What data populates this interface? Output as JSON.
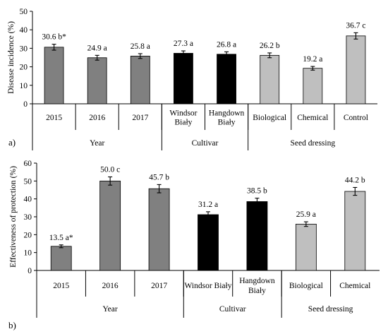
{
  "chart_data": [
    {
      "type": "bar",
      "panel_label": "a)",
      "ylabel": "Disease incidence (%)",
      "ylim": [
        0,
        50
      ],
      "yticks": [
        0,
        10,
        20,
        30,
        40,
        50
      ],
      "grid": false,
      "categories": [
        {
          "lines": [
            "2015"
          ],
          "value": 30.6,
          "error": 1.6,
          "label": "30.6 b*",
          "color": "#808080"
        },
        {
          "lines": [
            "2016"
          ],
          "value": 24.9,
          "error": 1.3,
          "label": "24.9 a",
          "color": "#808080"
        },
        {
          "lines": [
            "2017"
          ],
          "value": 25.8,
          "error": 1.3,
          "label": "25.8 a",
          "color": "#808080"
        },
        {
          "lines": [
            "Windsor",
            "Biały"
          ],
          "value": 27.3,
          "error": 1.3,
          "label": "27.3 a",
          "color": "#000000"
        },
        {
          "lines": [
            "Hangdown",
            "Biały"
          ],
          "value": 26.8,
          "error": 1.3,
          "label": "26.8 a",
          "color": "#000000"
        },
        {
          "lines": [
            "Biological"
          ],
          "value": 26.2,
          "error": 1.3,
          "label": "26.2 b",
          "color": "#bfbfbf"
        },
        {
          "lines": [
            "Chemical"
          ],
          "value": 19.2,
          "error": 1.0,
          "label": "19.2 a",
          "color": "#bfbfbf"
        },
        {
          "lines": [
            "Control"
          ],
          "value": 36.7,
          "error": 1.7,
          "label": "36.7 c",
          "color": "#bfbfbf"
        }
      ],
      "groups": [
        {
          "name": "Year",
          "count": 3
        },
        {
          "name": "Cultivar",
          "count": 2
        },
        {
          "name": "Seed dressing",
          "count": 3
        }
      ]
    },
    {
      "type": "bar",
      "panel_label": "b)",
      "ylabel": "Effectiveness of protection (%)",
      "ylim": [
        0,
        60
      ],
      "yticks": [
        0,
        10,
        20,
        30,
        40,
        50,
        60
      ],
      "grid": false,
      "categories": [
        {
          "lines": [
            "2015"
          ],
          "value": 13.5,
          "error": 0.8,
          "label": "13.5 a*",
          "color": "#808080"
        },
        {
          "lines": [
            "2016"
          ],
          "value": 50.0,
          "error": 2.3,
          "label": "50.0 c",
          "color": "#808080"
        },
        {
          "lines": [
            "2017"
          ],
          "value": 45.7,
          "error": 2.3,
          "label": "45.7 b",
          "color": "#808080"
        },
        {
          "lines": [
            "Windsor Biały"
          ],
          "value": 31.2,
          "error": 1.6,
          "label": "31.2 a",
          "color": "#000000"
        },
        {
          "lines": [
            "Hangdown",
            "Biały"
          ],
          "value": 38.5,
          "error": 1.9,
          "label": "38.5 b",
          "color": "#000000"
        },
        {
          "lines": [
            "Biological"
          ],
          "value": 25.9,
          "error": 1.3,
          "label": "25.9 a",
          "color": "#bfbfbf"
        },
        {
          "lines": [
            "Chemical"
          ],
          "value": 44.2,
          "error": 2.2,
          "label": "44.2 b",
          "color": "#bfbfbf"
        }
      ],
      "groups": [
        {
          "name": "Year",
          "count": 3
        },
        {
          "name": "Cultivar",
          "count": 2
        },
        {
          "name": "Seed dressing",
          "count": 2
        }
      ]
    }
  ]
}
